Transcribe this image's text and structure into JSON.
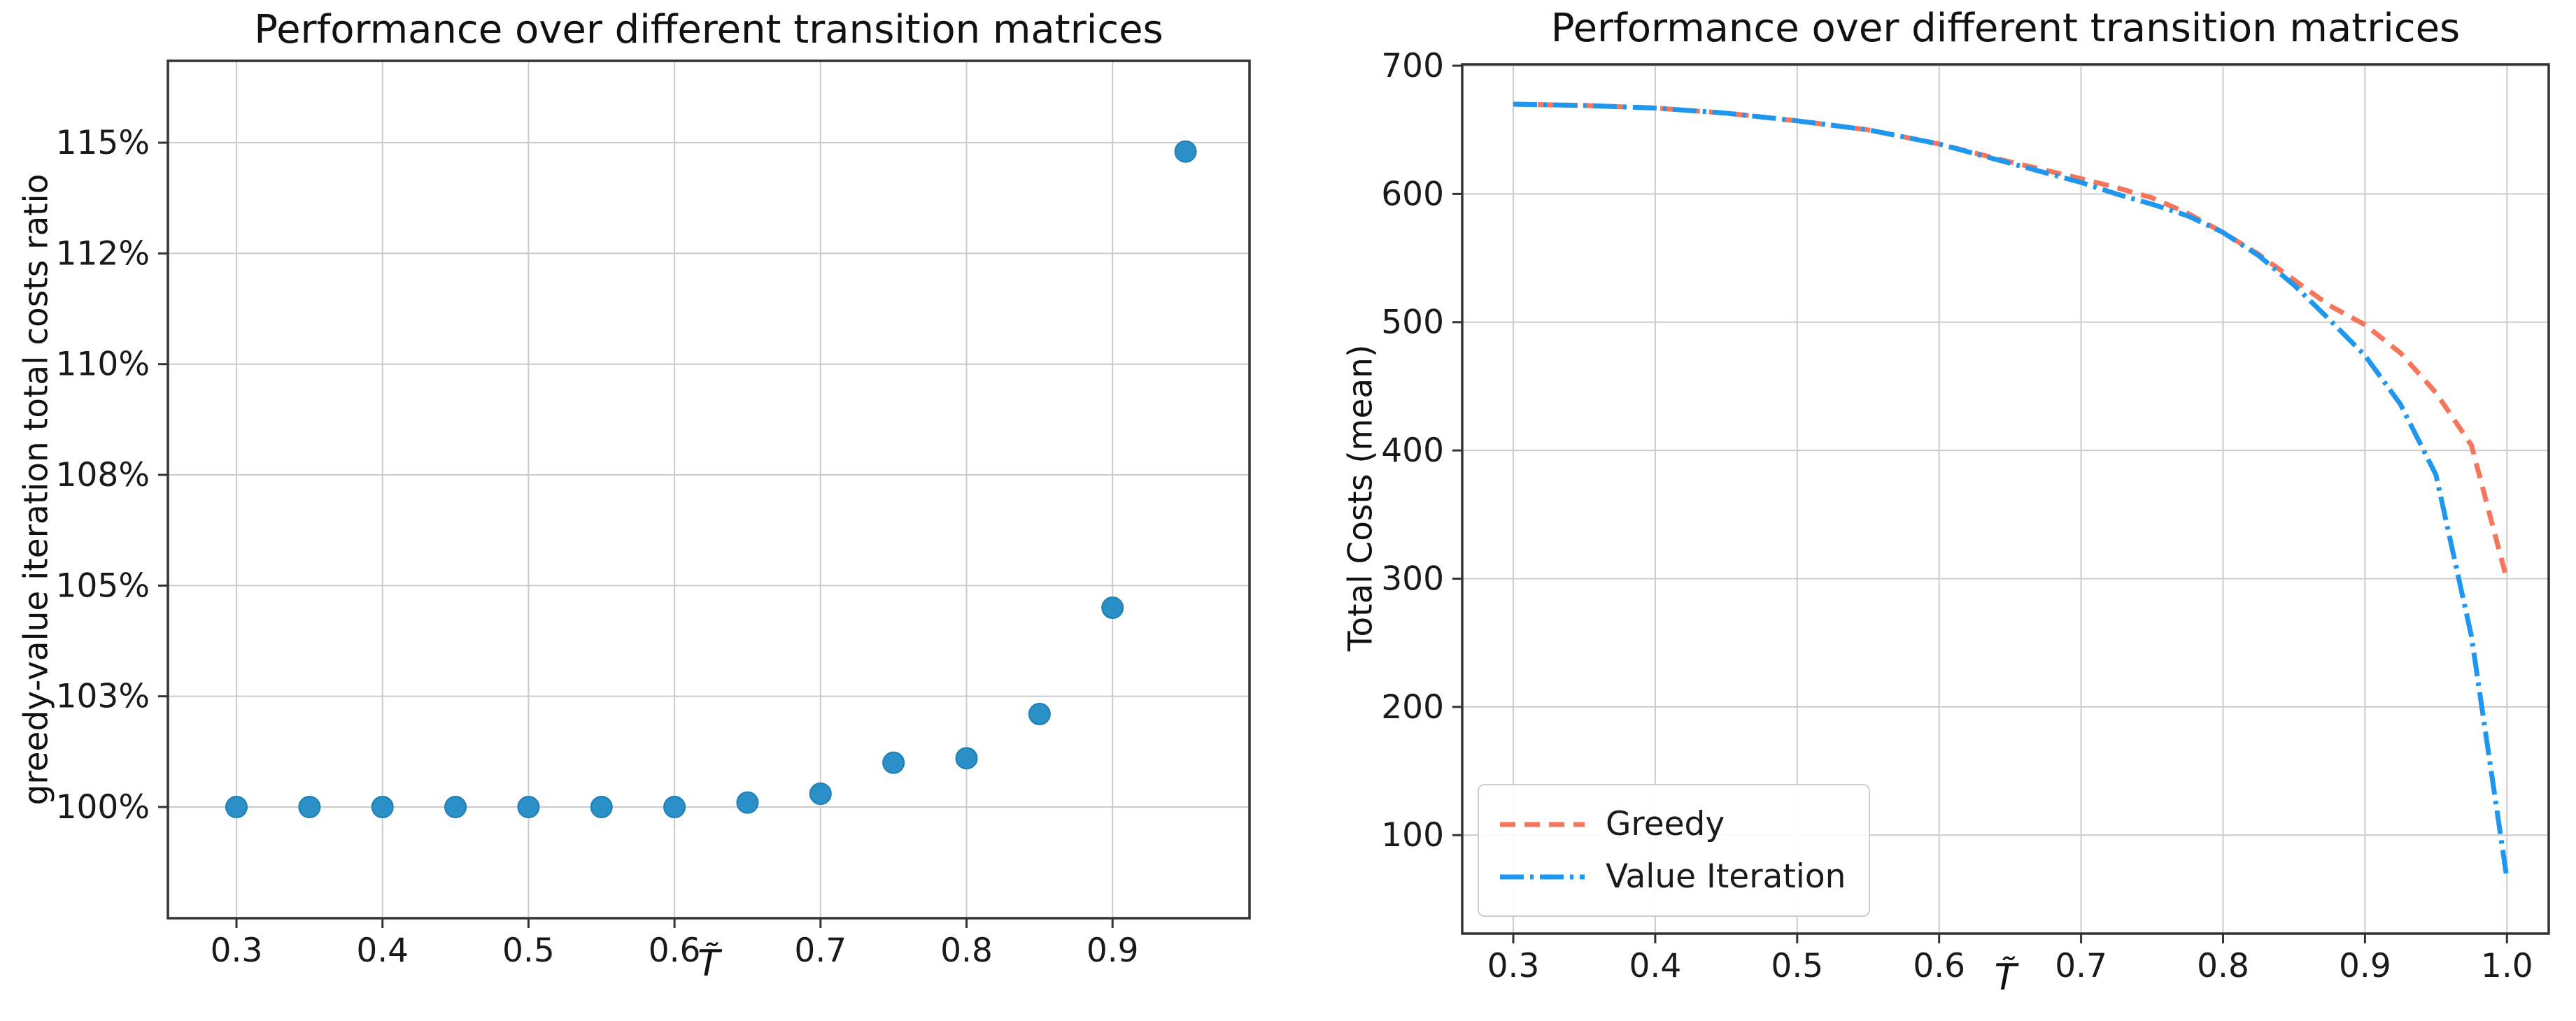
{
  "page": {
    "background": "#ffffff",
    "grid_color": "#cbcbcb",
    "spine_color": "#333333",
    "tick_label_color": "#1a1a1a"
  },
  "chart_data": [
    {
      "type": "scatter",
      "title": "Performance over different transition matrices",
      "xlabel": "T̃",
      "ylabel": "greedy-value iteration total costs ratio",
      "grid": true,
      "legend": null,
      "marker_color": "#2b90c8",
      "marker_edge_color": "#1e7fb4",
      "x_ticks": [
        0.3,
        0.4,
        0.5,
        0.6,
        0.7,
        0.8,
        0.9
      ],
      "x_tick_labels": [
        "0.3",
        "0.4",
        "0.5",
        "0.6",
        "0.7",
        "0.8",
        "0.9"
      ],
      "xlim": [
        0.253,
        0.994
      ],
      "y_tick_values": [
        100,
        102.5,
        105,
        107.5,
        110,
        112.5,
        115
      ],
      "y_tick_labels": [
        "100%",
        "103%",
        "105%",
        "108%",
        "110%",
        "112%",
        "115%"
      ],
      "ylim_pct": [
        97.5,
        116.9
      ],
      "x": [
        0.3,
        0.35,
        0.4,
        0.45,
        0.5,
        0.55,
        0.6,
        0.65,
        0.7,
        0.75,
        0.8,
        0.85,
        0.9,
        0.95
      ],
      "ratio_pct": [
        100.0,
        100.0,
        100.0,
        100.0,
        100.0,
        100.0,
        100.0,
        100.1,
        100.3,
        101.0,
        101.1,
        102.1,
        104.5,
        114.8
      ]
    },
    {
      "type": "line",
      "title": "Performance over different transition matrices",
      "xlabel": "T̃",
      "ylabel": "Total Costs (mean)",
      "grid": true,
      "legend_position": "lower left",
      "x_ticks": [
        0.3,
        0.4,
        0.5,
        0.6,
        0.7,
        0.8,
        0.9,
        1.0
      ],
      "x_tick_labels": [
        "0.3",
        "0.4",
        "0.5",
        "0.6",
        "0.7",
        "0.8",
        "0.9",
        "1.0"
      ],
      "xlim": [
        0.264,
        1.029
      ],
      "y_ticks": [
        100,
        200,
        300,
        400,
        500,
        600,
        700
      ],
      "y_tick_labels": [
        "100",
        "200",
        "300",
        "400",
        "500",
        "600",
        "700"
      ],
      "ylim": [
        23,
        700
      ],
      "x": [
        0.3,
        0.35,
        0.4,
        0.45,
        0.5,
        0.55,
        0.6,
        0.65,
        0.7,
        0.725,
        0.75,
        0.775,
        0.8,
        0.825,
        0.85,
        0.875,
        0.9,
        0.925,
        0.95,
        0.975,
        1.0
      ],
      "series": [
        {
          "name": "Greedy",
          "color": "#f5765b",
          "linestyle": "dashed",
          "values": [
            670,
            669,
            667,
            663,
            657,
            650,
            639,
            625,
            612,
            605,
            597,
            585,
            570,
            553,
            533,
            513,
            498,
            476,
            445,
            404,
            299
          ]
        },
        {
          "name": "Value Iteration",
          "color": "#1f97ef",
          "linestyle": "dashdot",
          "values": [
            670,
            669,
            667,
            663,
            657,
            650,
            639,
            624,
            609,
            600,
            592,
            583,
            570,
            552,
            529,
            502,
            474,
            436,
            381,
            255,
            66
          ]
        }
      ]
    }
  ]
}
